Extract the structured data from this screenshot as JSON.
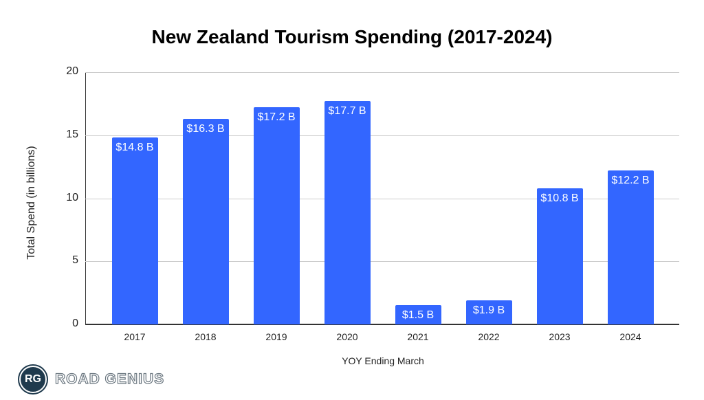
{
  "title": "New Zealand Tourism Spending (2017-2024)",
  "axes": {
    "xlabel": "YOY Ending March",
    "ylabel": "Total Spend (in billions)",
    "yticks": [
      "0",
      "5",
      "10",
      "15",
      "20"
    ]
  },
  "bars": [
    {
      "year": "2017",
      "label": "$14.8 B"
    },
    {
      "year": "2018",
      "label": "$16.3 B"
    },
    {
      "year": "2019",
      "label": "$17.2 B"
    },
    {
      "year": "2020",
      "label": "$17.7 B"
    },
    {
      "year": "2021",
      "label": "$1.5 B"
    },
    {
      "year": "2022",
      "label": "$1.9 B"
    },
    {
      "year": "2023",
      "label": "$10.8 B"
    },
    {
      "year": "2024",
      "label": "$12.2 B"
    }
  ],
  "logo": {
    "badge": "RG",
    "text": "ROAD GENIUS"
  },
  "colors": {
    "bar": "#3366ff",
    "logo": "#1f3a4d"
  },
  "chart_data": {
    "type": "bar",
    "title": "New Zealand Tourism Spending (2017-2024)",
    "xlabel": "YOY Ending March",
    "ylabel": "Total Spend (in billions)",
    "categories": [
      "2017",
      "2018",
      "2019",
      "2020",
      "2021",
      "2022",
      "2023",
      "2024"
    ],
    "values": [
      14.8,
      16.3,
      17.2,
      17.7,
      1.5,
      1.9,
      10.8,
      12.2
    ],
    "data_labels": [
      "$14.8 B",
      "$16.3 B",
      "$17.2 B",
      "$17.7 B",
      "$1.5 B",
      "$1.9 B",
      "$10.8 B",
      "$12.2 B"
    ],
    "ylim": [
      0,
      20
    ],
    "yticks": [
      0,
      5,
      10,
      15,
      20
    ],
    "grid": true,
    "legend": "none",
    "bar_color": "#3366ff"
  }
}
